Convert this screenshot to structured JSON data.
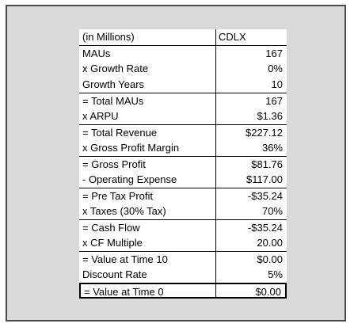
{
  "table": {
    "header": {
      "label": "(in Millions)",
      "column": "CDLX"
    },
    "rows": [
      {
        "label": "MAUs",
        "value": "167"
      },
      {
        "label": "x Growth Rate",
        "value": "0%"
      },
      {
        "label": "Growth Years",
        "value": "10"
      },
      {
        "label": "= Total MAUs",
        "value": "167"
      },
      {
        "label": "x ARPU",
        "value": "$1.36"
      },
      {
        "label": "= Total Revenue",
        "value": "$227.12"
      },
      {
        "label": "x Gross Profit Margin",
        "value": "36%"
      },
      {
        "label": "= Gross Profit",
        "value": "$81.76"
      },
      {
        "label": "- Operating Expense",
        "value": "$117.00"
      },
      {
        "label": "= Pre Tax Profit",
        "value": "-$35.24"
      },
      {
        "label": "x Taxes (30% Tax)",
        "value": "70%"
      },
      {
        "label": "= Cash Flow",
        "value": "-$35.24"
      },
      {
        "label": "x CF Multiple",
        "value": "20.00"
      },
      {
        "label": "= Value at Time 10",
        "value": "$0.00"
      },
      {
        "label": "Discount Rate",
        "value": "5%"
      },
      {
        "label": "= Value at Time 0",
        "value": "$0.00"
      }
    ]
  }
}
